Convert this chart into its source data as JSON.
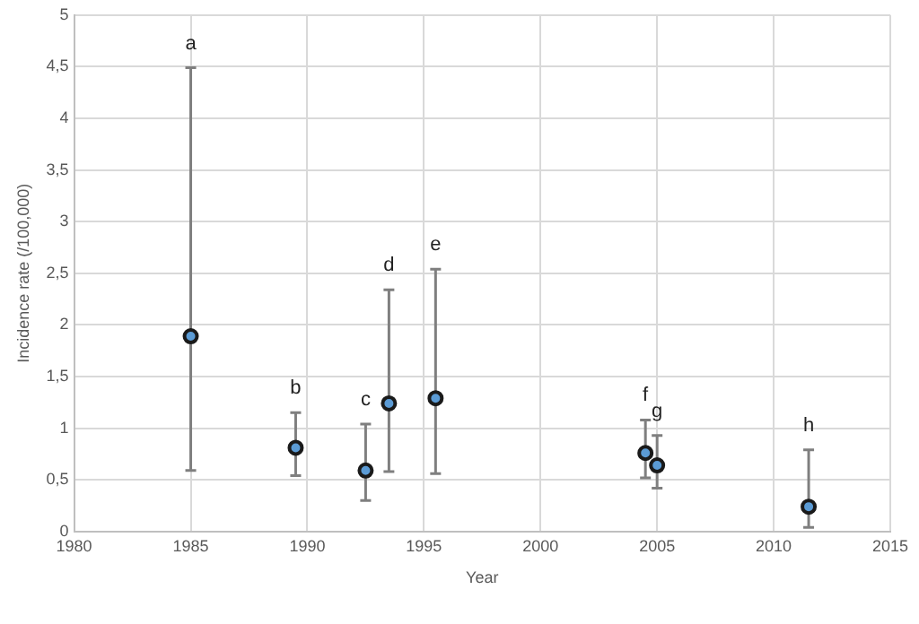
{
  "chart_data": {
    "type": "scatter",
    "xlabel": "Year",
    "ylabel": "Incidence rate (/100,000)",
    "x": [
      1985,
      1989.5,
      1992.5,
      1993.5,
      1995.5,
      2004.5,
      2005,
      2011.5
    ],
    "series": [
      {
        "color": "#1a1a1a",
        "values": [
          1.89,
          0.81,
          0.59,
          1.24,
          1.29,
          0.76,
          0.64,
          0.24
        ],
        "errors": [
          [
            0.59,
            4.49
          ],
          [
            0.54,
            1.15
          ],
          [
            0.3,
            1.04
          ],
          [
            0.58,
            2.34
          ],
          [
            0.56,
            2.54
          ],
          [
            0.52,
            1.08
          ],
          [
            0.42,
            0.93
          ],
          [
            0.04,
            0.79
          ]
        ]
      }
    ],
    "annotations": [
      {
        "text": "a",
        "x": 1985,
        "y": 4.49
      },
      {
        "text": "b",
        "x": 1989.5,
        "y": 1.15
      },
      {
        "text": "c",
        "x": 1992.5,
        "y": 1.04
      },
      {
        "text": "d",
        "x": 1993.5,
        "y": 2.34
      },
      {
        "text": "e",
        "x": 1995.5,
        "y": 2.54
      },
      {
        "text": "f",
        "x": 2004.5,
        "y": 1.08
      },
      {
        "text": "g",
        "x": 2005,
        "y": 0.93
      },
      {
        "text": "h",
        "x": 2011.5,
        "y": 0.79
      }
    ],
    "xlim": [
      1980,
      2015
    ],
    "xticks": [
      1980,
      1985,
      1990,
      1995,
      2000,
      2005,
      2010,
      2015
    ],
    "ylim": [
      0,
      5
    ],
    "yticks": [
      0,
      {
        "value": 0.5,
        "label": "0,5"
      },
      1,
      {
        "value": 1.5,
        "label": "1,5"
      },
      2,
      {
        "value": 2.5,
        "label": "2,5"
      },
      3,
      {
        "value": 3.5,
        "label": "3,5"
      },
      4,
      {
        "value": 4.5,
        "label": "4,5"
      },
      5
    ],
    "grid": true,
    "legend": false,
    "marker": "circle"
  }
}
